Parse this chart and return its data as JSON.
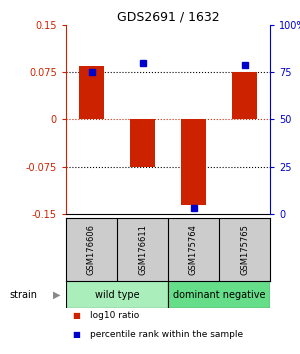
{
  "title": "GDS2691 / 1632",
  "samples": [
    "GSM176606",
    "GSM176611",
    "GSM175764",
    "GSM175765"
  ],
  "bar_values": [
    0.085,
    -0.075,
    -0.135,
    0.075
  ],
  "percentile_values": [
    75,
    80,
    3,
    79
  ],
  "ylim_left": [
    -0.15,
    0.15
  ],
  "ylim_right": [
    0,
    100
  ],
  "yticks_left": [
    -0.15,
    -0.075,
    0,
    0.075,
    0.15
  ],
  "yticks_right": [
    0,
    25,
    50,
    75,
    100
  ],
  "ytick_labels_left": [
    "-0.15",
    "-0.075",
    "0",
    "0.075",
    "0.15"
  ],
  "ytick_labels_right": [
    "0",
    "25",
    "50",
    "75",
    "100%"
  ],
  "hlines_black": [
    -0.075,
    0.075
  ],
  "hline_red": 0,
  "bar_color": "#cc2200",
  "marker_color": "#0000cc",
  "bar_width": 0.5,
  "groups": [
    {
      "label": "wild type",
      "samples": [
        0,
        1
      ],
      "color": "#aaeebb"
    },
    {
      "label": "dominant negative",
      "samples": [
        2,
        3
      ],
      "color": "#66dd88"
    }
  ],
  "strain_label": "strain",
  "legend_items": [
    {
      "color": "#cc2200",
      "label": "log10 ratio"
    },
    {
      "color": "#0000cc",
      "label": "percentile rank within the sample"
    }
  ],
  "background_color": "#ffffff",
  "label_color_left": "#cc2200",
  "label_color_right": "#0000cc",
  "sample_cell_color": "#cccccc"
}
